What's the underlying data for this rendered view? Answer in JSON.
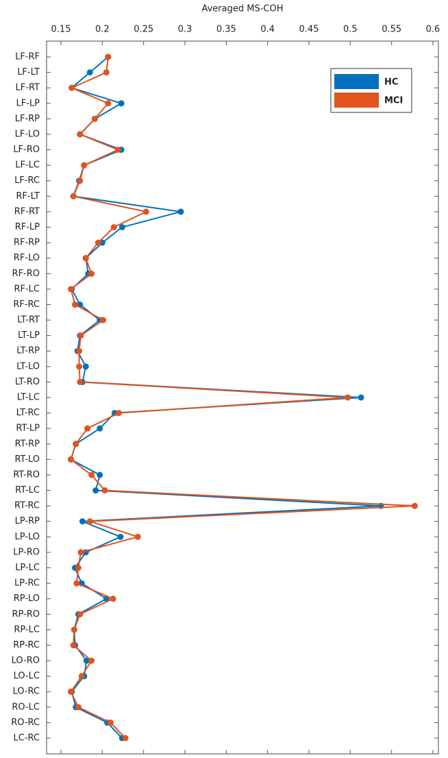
{
  "chart_data": {
    "type": "line",
    "orientation": "horizontal",
    "x_label": "Averaged MS-COH",
    "categories": [
      "LF-RF",
      "LF-LT",
      "LF-RT",
      "LF-LP",
      "LF-RP",
      "LF-LO",
      "LF-RO",
      "LF-LC",
      "LF-RC",
      "RF-LT",
      "RF-RT",
      "RF-LP",
      "RF-RP",
      "RF-LO",
      "RF-RO",
      "RF-LC",
      "RF-RC",
      "LT-RT",
      "LT-LP",
      "LT-RP",
      "LT-LO",
      "LT-RO",
      "LT-LC",
      "LT-RC",
      "RT-LP",
      "RT-RP",
      "RT-LO",
      "RT-RO",
      "RT-LC",
      "RT-RC",
      "LP-RP",
      "LP-LO",
      "LP-RO",
      "LP-LC",
      "LP-RC",
      "RP-LO",
      "RP-RO",
      "RP-LC",
      "RP-RC",
      "LO-RO",
      "LO-LC",
      "LO-RC",
      "RO-LC",
      "RO-RC",
      "LC-RC"
    ],
    "series": [
      {
        "name": "HC",
        "color": "#0072bd",
        "values": [
          0.207,
          0.185,
          0.163,
          0.223,
          0.191,
          0.173,
          0.223,
          0.178,
          0.172,
          0.165,
          0.295,
          0.224,
          0.2,
          0.18,
          0.183,
          0.163,
          0.173,
          0.197,
          0.173,
          0.17,
          0.18,
          0.176,
          0.513,
          0.215,
          0.197,
          0.168,
          0.162,
          0.197,
          0.192,
          0.537,
          0.176,
          0.222,
          0.18,
          0.167,
          0.175,
          0.205,
          0.171,
          0.166,
          0.167,
          0.181,
          0.178,
          0.163,
          0.168,
          0.206,
          0.224
        ]
      },
      {
        "name": "MCI",
        "color": "#e0541e",
        "values": [
          0.207,
          0.205,
          0.163,
          0.207,
          0.191,
          0.173,
          0.219,
          0.178,
          0.173,
          0.165,
          0.253,
          0.214,
          0.195,
          0.18,
          0.187,
          0.162,
          0.167,
          0.201,
          0.174,
          0.172,
          0.172,
          0.173,
          0.497,
          0.22,
          0.182,
          0.168,
          0.162,
          0.187,
          0.203,
          0.578,
          0.185,
          0.243,
          0.174,
          0.171,
          0.169,
          0.213,
          0.173,
          0.166,
          0.165,
          0.187,
          0.175,
          0.162,
          0.171,
          0.21,
          0.228
        ]
      }
    ],
    "xlim": [
      0.15,
      0.6
    ],
    "xticks": [
      0.15,
      0.2,
      0.25,
      0.3,
      0.35,
      0.4,
      0.45,
      0.5,
      0.55,
      0.6
    ],
    "legend": "northeast"
  }
}
